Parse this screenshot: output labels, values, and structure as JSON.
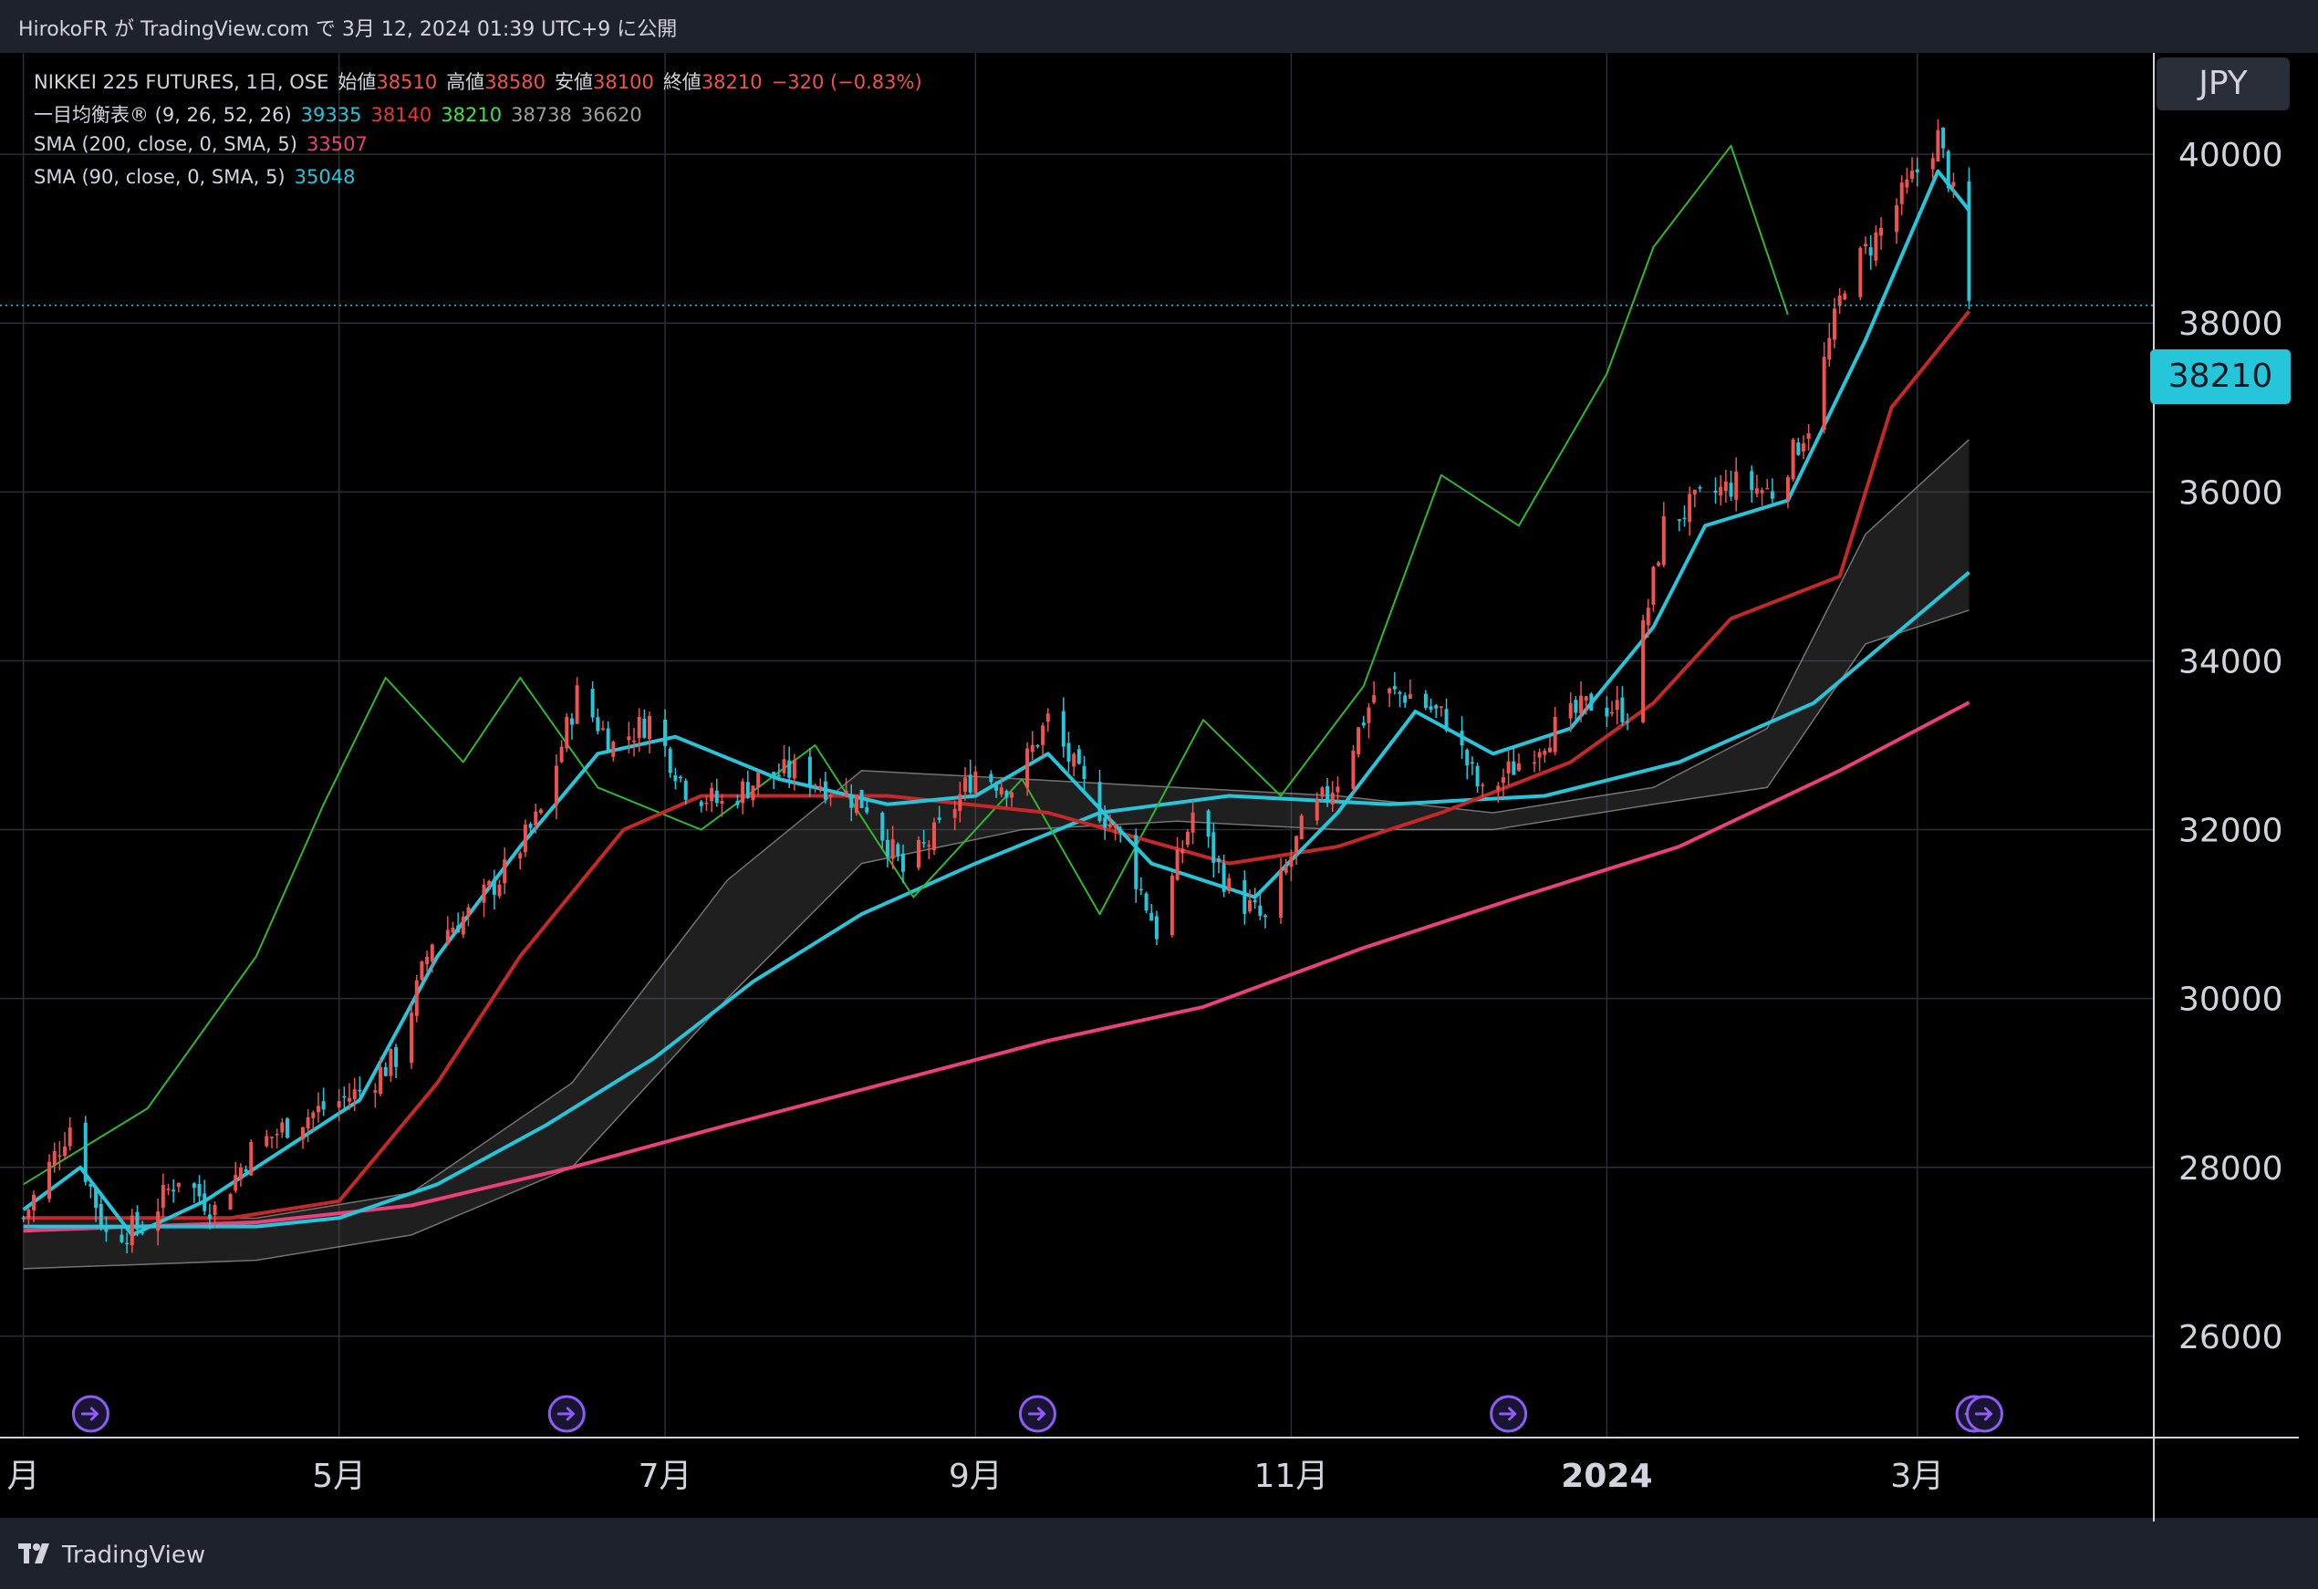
{
  "header": {
    "text": "HirokoFR が TradingView.com で 3月 12, 2024 01:39 UTC+9 に公開"
  },
  "legend": {
    "symbol": "NIKKEI 225 FUTURES, 1日, OSE",
    "open_label": "始値",
    "open_value": "38510",
    "high_label": "高値",
    "high_value": "38580",
    "low_label": "安値",
    "low_value": "38100",
    "close_label": "終値",
    "close_value": "38210",
    "change": "−320 (−0.83%)",
    "ichimoku_label": "一目均衡表® (9, 26, 52, 26)",
    "ichimoku_values": [
      {
        "value": "39335",
        "color": "#26c6da"
      },
      {
        "value": "38140",
        "color": "#e53935"
      },
      {
        "value": "38210",
        "color": "#43e04b"
      },
      {
        "value": "38738",
        "color": "#9e9e9e"
      },
      {
        "value": "36620",
        "color": "#9e9e9e"
      }
    ],
    "sma200_label": "SMA (200, close, 0, SMA, 5)",
    "sma200_value": "33507",
    "sma90_label": "SMA (90, close, 0, SMA, 5)",
    "sma90_value": "35048"
  },
  "currency": "JPY",
  "last_price": "38210",
  "footer": {
    "brand": "TradingView"
  },
  "colors": {
    "background": "#000000",
    "up_candle": "#ef5350",
    "down_candle": "#26c6da",
    "conversion_line": "#26c6da",
    "base_line": "#c62828",
    "lagging_span": "#2eb82e",
    "cloud": "#5a5a5a",
    "sma200": "#ec407a",
    "sma90": "#26c6da"
  },
  "chart_data": {
    "type": "candlestick",
    "title": "NIKKEI 225 FUTURES, 1日, OSE",
    "y_ticks": [
      26000,
      28000,
      30000,
      32000,
      34000,
      36000,
      38000,
      40000
    ],
    "ylim": [
      24800,
      41200
    ],
    "x_labels": [
      {
        "label": "月",
        "date": "2023-03-01"
      },
      {
        "label": "5月",
        "date": "2023-05-01"
      },
      {
        "label": "7月",
        "date": "2023-07-03"
      },
      {
        "label": "9月",
        "date": "2023-09-01"
      },
      {
        "label": "11月",
        "date": "2023-11-01"
      },
      {
        "label": "2024",
        "date": "2024-01-01",
        "bold": true
      },
      {
        "label": "3月",
        "date": "2024-03-01"
      }
    ],
    "last_price": 38210,
    "close_path": [
      [
        "2023-03-01",
        27400
      ],
      [
        "2023-03-10",
        28500
      ],
      [
        "2023-03-17",
        27200
      ],
      [
        "2023-03-24",
        27300
      ],
      [
        "2023-03-31",
        27900
      ],
      [
        "2023-04-07",
        27500
      ],
      [
        "2023-04-14",
        28200
      ],
      [
        "2023-04-21",
        28500
      ],
      [
        "2023-04-28",
        28700
      ],
      [
        "2023-05-05",
        28900
      ],
      [
        "2023-05-12",
        29300
      ],
      [
        "2023-05-19",
        30700
      ],
      [
        "2023-05-26",
        31000
      ],
      [
        "2023-06-02",
        31500
      ],
      [
        "2023-06-09",
        32200
      ],
      [
        "2023-06-16",
        33600
      ],
      [
        "2023-06-23",
        33000
      ],
      [
        "2023-06-30",
        33300
      ],
      [
        "2023-07-07",
        32500
      ],
      [
        "2023-07-14",
        32300
      ],
      [
        "2023-07-21",
        32600
      ],
      [
        "2023-07-28",
        32700
      ],
      [
        "2023-08-04",
        32500
      ],
      [
        "2023-08-11",
        32300
      ],
      [
        "2023-08-18",
        31500
      ],
      [
        "2023-08-25",
        32000
      ],
      [
        "2023-09-01",
        32700
      ],
      [
        "2023-09-08",
        32500
      ],
      [
        "2023-09-15",
        33300
      ],
      [
        "2023-09-22",
        32500
      ],
      [
        "2023-09-29",
        31900
      ],
      [
        "2023-10-06",
        30800
      ],
      [
        "2023-10-13",
        32200
      ],
      [
        "2023-10-20",
        31300
      ],
      [
        "2023-10-27",
        30900
      ],
      [
        "2023-11-03",
        32000
      ],
      [
        "2023-11-10",
        32600
      ],
      [
        "2023-11-17",
        33600
      ],
      [
        "2023-11-24",
        33600
      ],
      [
        "2023-12-01",
        33300
      ],
      [
        "2023-12-08",
        32400
      ],
      [
        "2023-12-15",
        32800
      ],
      [
        "2023-12-22",
        33200
      ],
      [
        "2023-12-29",
        33500
      ],
      [
        "2024-01-05",
        33400
      ],
      [
        "2024-01-12",
        35600
      ],
      [
        "2024-01-19",
        35900
      ],
      [
        "2024-01-26",
        36100
      ],
      [
        "2024-02-02",
        36000
      ],
      [
        "2024-02-09",
        36800
      ],
      [
        "2024-02-16",
        38500
      ],
      [
        "2024-02-23",
        39100
      ],
      [
        "2024-03-01",
        39800
      ],
      [
        "2024-03-05",
        40200
      ],
      [
        "2024-03-08",
        39500
      ],
      [
        "2024-03-11",
        38210
      ]
    ],
    "sma200_path": [
      [
        "2023-03-01",
        27250
      ],
      [
        "2023-04-15",
        27350
      ],
      [
        "2023-05-15",
        27550
      ],
      [
        "2023-06-15",
        28000
      ],
      [
        "2023-07-15",
        28500
      ],
      [
        "2023-08-15",
        29000
      ],
      [
        "2023-09-15",
        29500
      ],
      [
        "2023-10-15",
        29900
      ],
      [
        "2023-11-15",
        30600
      ],
      [
        "2023-12-15",
        31200
      ],
      [
        "2024-01-15",
        31800
      ],
      [
        "2024-02-15",
        32700
      ],
      [
        "2024-03-11",
        33507
      ]
    ],
    "sma90_path": [
      [
        "2023-03-01",
        27300
      ],
      [
        "2023-04-15",
        27300
      ],
      [
        "2023-05-01",
        27400
      ],
      [
        "2023-05-20",
        27800
      ],
      [
        "2023-06-10",
        28500
      ],
      [
        "2023-07-01",
        29300
      ],
      [
        "2023-07-20",
        30200
      ],
      [
        "2023-08-10",
        31000
      ],
      [
        "2023-09-01",
        31600
      ],
      [
        "2023-09-25",
        32200
      ],
      [
        "2023-10-20",
        32400
      ],
      [
        "2023-11-20",
        32300
      ],
      [
        "2023-12-20",
        32400
      ],
      [
        "2024-01-15",
        32800
      ],
      [
        "2024-02-10",
        33500
      ],
      [
        "2024-03-11",
        35048
      ]
    ],
    "base_line_path": [
      [
        "2023-03-01",
        27400
      ],
      [
        "2023-04-10",
        27400
      ],
      [
        "2023-05-01",
        27600
      ],
      [
        "2023-05-20",
        29000
      ],
      [
        "2023-06-05",
        30500
      ],
      [
        "2023-06-25",
        32000
      ],
      [
        "2023-07-10",
        32400
      ],
      [
        "2023-08-15",
        32400
      ],
      [
        "2023-09-15",
        32200
      ],
      [
        "2023-10-20",
        31600
      ],
      [
        "2023-11-10",
        31800
      ],
      [
        "2023-11-30",
        32200
      ],
      [
        "2023-12-25",
        32800
      ],
      [
        "2024-01-10",
        33500
      ],
      [
        "2024-01-25",
        34500
      ],
      [
        "2024-02-15",
        35000
      ],
      [
        "2024-02-25",
        37000
      ],
      [
        "2024-03-11",
        38140
      ]
    ],
    "conversion_line_path": [
      [
        "2023-03-01",
        27500
      ],
      [
        "2023-03-12",
        28000
      ],
      [
        "2023-03-22",
        27200
      ],
      [
        "2023-04-05",
        27600
      ],
      [
        "2023-04-20",
        28200
      ],
      [
        "2023-05-05",
        28800
      ],
      [
        "2023-05-20",
        30500
      ],
      [
        "2023-06-05",
        31800
      ],
      [
        "2023-06-20",
        32900
      ],
      [
        "2023-07-05",
        33100
      ],
      [
        "2023-07-25",
        32600
      ],
      [
        "2023-08-15",
        32300
      ],
      [
        "2023-09-01",
        32400
      ],
      [
        "2023-09-15",
        32900
      ],
      [
        "2023-10-05",
        31600
      ],
      [
        "2023-10-25",
        31200
      ],
      [
        "2023-11-10",
        32200
      ],
      [
        "2023-11-25",
        33400
      ],
      [
        "2023-12-10",
        32900
      ],
      [
        "2023-12-25",
        33200
      ],
      [
        "2024-01-10",
        34400
      ],
      [
        "2024-01-20",
        35600
      ],
      [
        "2024-02-05",
        35900
      ],
      [
        "2024-02-20",
        37800
      ],
      [
        "2024-03-05",
        39800
      ],
      [
        "2024-03-11",
        39335
      ]
    ],
    "lagging_span_path": [
      [
        "2023-03-01",
        27800
      ],
      [
        "2023-03-25",
        28700
      ],
      [
        "2023-04-15",
        30500
      ],
      [
        "2023-04-28",
        32300
      ],
      [
        "2023-05-10",
        33800
      ],
      [
        "2023-05-25",
        32800
      ],
      [
        "2023-06-05",
        33800
      ],
      [
        "2023-06-20",
        32500
      ],
      [
        "2023-07-10",
        32000
      ],
      [
        "2023-08-01",
        33000
      ],
      [
        "2023-08-20",
        31200
      ],
      [
        "2023-09-10",
        32600
      ],
      [
        "2023-09-25",
        31000
      ],
      [
        "2023-10-15",
        33300
      ],
      [
        "2023-10-30",
        32400
      ],
      [
        "2023-11-15",
        33700
      ],
      [
        "2023-11-30",
        36200
      ],
      [
        "2023-12-15",
        35600
      ],
      [
        "2024-01-01",
        37400
      ],
      [
        "2024-01-10",
        38900
      ],
      [
        "2024-01-25",
        40100
      ],
      [
        "2024-02-05",
        38100
      ]
    ],
    "cloud_upper_path": [
      [
        "2023-03-01",
        27400
      ],
      [
        "2023-04-15",
        27400
      ],
      [
        "2023-05-15",
        27700
      ],
      [
        "2023-06-15",
        29000
      ],
      [
        "2023-07-15",
        31400
      ],
      [
        "2023-08-10",
        32700
      ],
      [
        "2023-09-10",
        32600
      ],
      [
        "2023-10-10",
        32500
      ],
      [
        "2023-11-10",
        32400
      ],
      [
        "2023-12-10",
        32200
      ],
      [
        "2024-01-10",
        32500
      ],
      [
        "2024-02-01",
        33200
      ],
      [
        "2024-02-20",
        35500
      ],
      [
        "2024-03-11",
        36620
      ]
    ],
    "cloud_lower_path": [
      [
        "2023-03-01",
        26800
      ],
      [
        "2023-04-15",
        26900
      ],
      [
        "2023-05-15",
        27200
      ],
      [
        "2023-06-15",
        28000
      ],
      [
        "2023-07-15",
        30000
      ],
      [
        "2023-08-10",
        31600
      ],
      [
        "2023-09-10",
        32000
      ],
      [
        "2023-10-10",
        32100
      ],
      [
        "2023-11-10",
        32000
      ],
      [
        "2023-12-10",
        32000
      ],
      [
        "2024-01-10",
        32300
      ],
      [
        "2024-02-01",
        32500
      ],
      [
        "2024-02-20",
        34200
      ],
      [
        "2024-03-11",
        34600
      ]
    ]
  }
}
